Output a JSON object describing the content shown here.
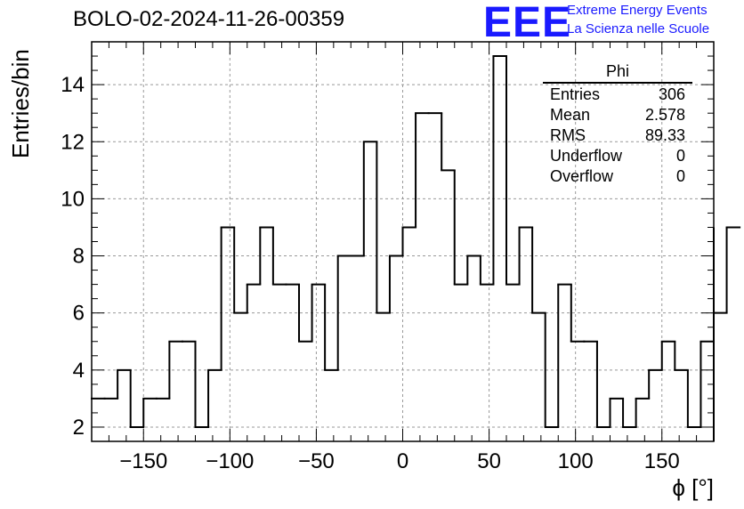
{
  "page": {
    "title": "BOLO-02-2024-11-26-00359",
    "logo_text": "EEE",
    "logo_line1": "Extreme Energy Events",
    "logo_line2": "La Scienza nelle Scuole"
  },
  "stats": {
    "title": "Phi",
    "rows": [
      {
        "label": "Entries",
        "value": "306"
      },
      {
        "label": "Mean",
        "value": "2.578"
      },
      {
        "label": "RMS",
        "value": "89.33"
      },
      {
        "label": "Underflow",
        "value": "0"
      },
      {
        "label": "Overflow",
        "value": "0"
      }
    ]
  },
  "chart_data": {
    "type": "histogram",
    "title": "BOLO-02-2024-11-26-00359",
    "xlabel": "ϕ [°]",
    "ylabel": "Entries/bin",
    "xlim": [
      -180,
      180
    ],
    "ylim": [
      1.5,
      15.5
    ],
    "bin_width": 7.5,
    "bin_edges_start": -180,
    "values": [
      3,
      3,
      4,
      2,
      3,
      3,
      5,
      5,
      2,
      4,
      9,
      6,
      7,
      9,
      7,
      7,
      5,
      7,
      4,
      8,
      8,
      12,
      6,
      8,
      9,
      13,
      13,
      11,
      7,
      8,
      7,
      15,
      7,
      9,
      6,
      2,
      7,
      5,
      5,
      2,
      3,
      2,
      3,
      4,
      5,
      4,
      2,
      5,
      6,
      9
    ],
    "x_ticks": [
      -150,
      -100,
      -50,
      0,
      50,
      100,
      150
    ],
    "x_tick_labels": [
      "−150",
      "−100",
      "−50",
      "0",
      "50",
      "100",
      "150"
    ],
    "y_ticks": [
      2,
      4,
      6,
      8,
      10,
      12,
      14
    ],
    "y_tick_labels": [
      "2",
      "4",
      "6",
      "8",
      "10",
      "12",
      "14"
    ],
    "grid": true,
    "line_color": "#000000",
    "grid_color": "#999999"
  }
}
